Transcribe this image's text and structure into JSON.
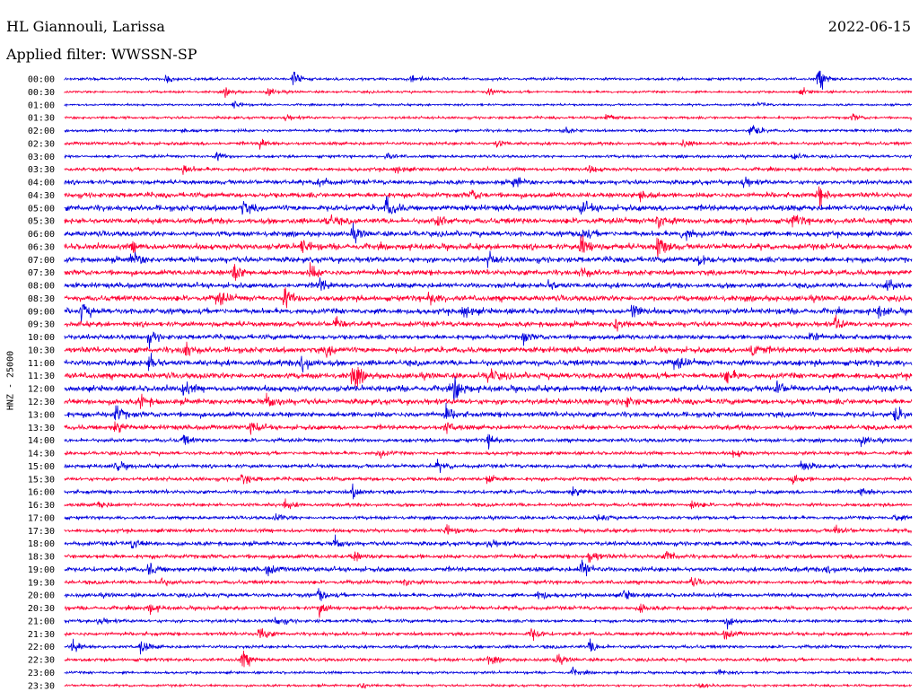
{
  "header": {
    "station": "HL Giannouli, Larissa",
    "date": "2022-06-15",
    "filter": "Applied filter: WWSSN-SP"
  },
  "chart_data": {
    "type": "line",
    "title": "HL Giannouli, Larissa",
    "date": "2022-06-15",
    "filter": "WWSSN-SP",
    "ylabel": "HNZ - 25000",
    "colors": [
      "#0000dd",
      "#ff0033"
    ],
    "rows": [
      {
        "time": "00:00",
        "activity": 0.3,
        "events": [
          [
            0.27,
            2.2
          ],
          [
            0.89,
            2.5
          ],
          [
            0.12,
            0.8
          ],
          [
            0.41,
            0.7
          ]
        ]
      },
      {
        "time": "00:30",
        "activity": 0.25,
        "events": [
          [
            0.19,
            0.8
          ],
          [
            0.24,
            0.9
          ],
          [
            0.5,
            0.7
          ],
          [
            0.87,
            0.6
          ]
        ]
      },
      {
        "time": "01:00",
        "activity": 0.2,
        "events": [
          [
            0.2,
            0.9
          ],
          [
            0.82,
            0.5
          ]
        ]
      },
      {
        "time": "01:30",
        "activity": 0.3,
        "events": [
          [
            0.26,
            0.8
          ],
          [
            0.64,
            1.0
          ],
          [
            0.93,
            0.7
          ]
        ]
      },
      {
        "time": "02:00",
        "activity": 0.35,
        "events": [
          [
            0.81,
            1.6
          ],
          [
            0.14,
            0.6
          ],
          [
            0.59,
            0.7
          ]
        ]
      },
      {
        "time": "02:30",
        "activity": 0.45,
        "events": [
          [
            0.23,
            1.2
          ],
          [
            0.51,
            0.7
          ],
          [
            0.73,
            0.7
          ]
        ]
      },
      {
        "time": "03:00",
        "activity": 0.35,
        "events": [
          [
            0.18,
            0.8
          ],
          [
            0.38,
            0.7
          ],
          [
            0.86,
            0.8
          ]
        ]
      },
      {
        "time": "03:30",
        "activity": 0.5,
        "events": [
          [
            0.14,
            1.0
          ],
          [
            0.39,
            0.9
          ],
          [
            0.62,
            0.8
          ]
        ]
      },
      {
        "time": "04:00",
        "activity": 0.7,
        "events": [
          [
            0.3,
            1.3
          ],
          [
            0.53,
            1.2
          ],
          [
            0.8,
            1.4
          ]
        ]
      },
      {
        "time": "04:30",
        "activity": 0.85,
        "events": [
          [
            0.68,
            1.6
          ],
          [
            0.89,
            1.8
          ],
          [
            0.48,
            1.1
          ]
        ]
      },
      {
        "time": "05:00",
        "activity": 1.0,
        "events": [
          [
            0.38,
            2.2
          ],
          [
            0.21,
            1.4
          ],
          [
            0.61,
            1.3
          ]
        ]
      },
      {
        "time": "05:30",
        "activity": 0.95,
        "events": [
          [
            0.31,
            1.6
          ],
          [
            0.44,
            1.2
          ],
          [
            0.7,
            1.8
          ],
          [
            0.86,
            1.3
          ]
        ]
      },
      {
        "time": "06:00",
        "activity": 0.9,
        "events": [
          [
            0.73,
            2.0
          ],
          [
            0.61,
            1.4
          ],
          [
            0.34,
            1.2
          ]
        ]
      },
      {
        "time": "06:30",
        "activity": 1.0,
        "events": [
          [
            0.61,
            3.0
          ],
          [
            0.7,
            2.8
          ],
          [
            0.28,
            1.6
          ],
          [
            0.08,
            1.4
          ]
        ]
      },
      {
        "time": "07:00",
        "activity": 0.95,
        "events": [
          [
            0.08,
            1.6
          ],
          [
            0.5,
            1.4
          ],
          [
            0.75,
            1.3
          ]
        ]
      },
      {
        "time": "07:30",
        "activity": 0.9,
        "events": [
          [
            0.2,
            1.8
          ],
          [
            0.29,
            1.4
          ],
          [
            0.61,
            1.2
          ]
        ]
      },
      {
        "time": "08:00",
        "activity": 0.85,
        "events": [
          [
            0.3,
            1.6
          ],
          [
            0.57,
            1.3
          ],
          [
            0.97,
            1.4
          ]
        ]
      },
      {
        "time": "08:30",
        "activity": 0.95,
        "events": [
          [
            0.26,
            2.0
          ],
          [
            0.18,
            1.8
          ],
          [
            0.43,
            1.3
          ]
        ]
      },
      {
        "time": "09:00",
        "activity": 0.95,
        "events": [
          [
            0.02,
            1.8
          ],
          [
            0.47,
            1.6
          ],
          [
            0.67,
            1.4
          ],
          [
            0.96,
            1.2
          ]
        ]
      },
      {
        "time": "09:30",
        "activity": 0.85,
        "events": [
          [
            0.32,
            1.2
          ],
          [
            0.65,
            1.5
          ],
          [
            0.91,
            1.4
          ]
        ]
      },
      {
        "time": "10:00",
        "activity": 0.8,
        "events": [
          [
            0.1,
            1.3
          ],
          [
            0.54,
            1.2
          ],
          [
            0.88,
            1.5
          ]
        ]
      },
      {
        "time": "10:30",
        "activity": 1.0,
        "events": [
          [
            0.14,
            2.0
          ],
          [
            0.81,
            2.2
          ],
          [
            0.31,
            1.4
          ]
        ]
      },
      {
        "time": "11:00",
        "activity": 1.0,
        "events": [
          [
            0.1,
            2.0
          ],
          [
            0.28,
            2.4
          ],
          [
            0.72,
            1.4
          ]
        ]
      },
      {
        "time": "11:30",
        "activity": 1.0,
        "events": [
          [
            0.34,
            3.0
          ],
          [
            0.5,
            1.8
          ],
          [
            0.78,
            1.6
          ]
        ]
      },
      {
        "time": "12:00",
        "activity": 1.0,
        "events": [
          [
            0.46,
            2.5
          ],
          [
            0.14,
            1.6
          ],
          [
            0.84,
            1.6
          ]
        ]
      },
      {
        "time": "12:30",
        "activity": 0.95,
        "events": [
          [
            0.24,
            1.8
          ],
          [
            0.09,
            1.4
          ],
          [
            0.66,
            1.3
          ]
        ]
      },
      {
        "time": "13:00",
        "activity": 0.9,
        "events": [
          [
            0.06,
            1.8
          ],
          [
            0.45,
            1.5
          ],
          [
            0.98,
            1.5
          ]
        ]
      },
      {
        "time": "13:30",
        "activity": 0.75,
        "events": [
          [
            0.06,
            1.6
          ],
          [
            0.22,
            1.3
          ],
          [
            0.45,
            1.2
          ]
        ]
      },
      {
        "time": "14:00",
        "activity": 0.55,
        "events": [
          [
            0.5,
            1.3
          ],
          [
            0.14,
            1.0
          ],
          [
            0.94,
            1.1
          ]
        ]
      },
      {
        "time": "14:30",
        "activity": 0.5,
        "events": [
          [
            0.37,
            1.0
          ],
          [
            0.79,
            0.9
          ]
        ]
      },
      {
        "time": "15:00",
        "activity": 0.55,
        "events": [
          [
            0.06,
            1.2
          ],
          [
            0.44,
            1.0
          ],
          [
            0.87,
            1.3
          ]
        ]
      },
      {
        "time": "15:30",
        "activity": 0.55,
        "events": [
          [
            0.21,
            1.4
          ],
          [
            0.5,
            1.2
          ],
          [
            0.86,
            1.0
          ]
        ]
      },
      {
        "time": "16:00",
        "activity": 0.55,
        "events": [
          [
            0.34,
            1.2
          ],
          [
            0.6,
            1.2
          ],
          [
            0.94,
            1.1
          ]
        ]
      },
      {
        "time": "16:30",
        "activity": 0.5,
        "events": [
          [
            0.04,
            1.0
          ],
          [
            0.26,
            0.9
          ],
          [
            0.74,
            1.0
          ]
        ]
      },
      {
        "time": "17:00",
        "activity": 0.45,
        "events": [
          [
            0.25,
            0.8
          ],
          [
            0.63,
            1.0
          ],
          [
            0.98,
            0.9
          ]
        ]
      },
      {
        "time": "17:30",
        "activity": 0.55,
        "events": [
          [
            0.45,
            1.2
          ],
          [
            0.91,
            1.0
          ]
        ]
      },
      {
        "time": "18:00",
        "activity": 0.65,
        "events": [
          [
            0.08,
            1.1
          ],
          [
            0.32,
            1.3
          ],
          [
            0.5,
            1.1
          ]
        ]
      },
      {
        "time": "18:30",
        "activity": 0.65,
        "events": [
          [
            0.62,
            1.6
          ],
          [
            0.34,
            1.1
          ],
          [
            0.71,
            1.2
          ]
        ]
      },
      {
        "time": "19:00",
        "activity": 0.75,
        "events": [
          [
            0.61,
            2.2
          ],
          [
            0.1,
            1.3
          ],
          [
            0.24,
            1.2
          ],
          [
            0.9,
            1.1
          ]
        ]
      },
      {
        "time": "19:30",
        "activity": 0.55,
        "events": [
          [
            0.11,
            1.2
          ],
          [
            0.4,
            1.0
          ],
          [
            0.74,
            0.9
          ]
        ]
      },
      {
        "time": "20:00",
        "activity": 0.6,
        "events": [
          [
            0.3,
            1.3
          ],
          [
            0.56,
            1.2
          ],
          [
            0.66,
            1.1
          ]
        ]
      },
      {
        "time": "20:30",
        "activity": 0.55,
        "events": [
          [
            0.3,
            1.4
          ],
          [
            0.1,
            1.1
          ],
          [
            0.68,
            1.0
          ]
        ]
      },
      {
        "time": "21:00",
        "activity": 0.45,
        "events": [
          [
            0.04,
            1.0
          ],
          [
            0.25,
            1.1
          ],
          [
            0.78,
            1.1
          ]
        ]
      },
      {
        "time": "21:30",
        "activity": 0.5,
        "events": [
          [
            0.23,
            1.6
          ],
          [
            0.55,
            1.4
          ],
          [
            0.78,
            1.1
          ]
        ]
      },
      {
        "time": "22:00",
        "activity": 0.45,
        "events": [
          [
            0.01,
            1.5
          ],
          [
            0.09,
            1.4
          ],
          [
            0.62,
            1.3
          ]
        ]
      },
      {
        "time": "22:30",
        "activity": 0.45,
        "events": [
          [
            0.21,
            2.0
          ],
          [
            0.5,
            1.0
          ],
          [
            0.58,
            0.9
          ]
        ]
      },
      {
        "time": "23:00",
        "activity": 0.3,
        "events": [
          [
            0.6,
            0.8
          ],
          [
            0.77,
            0.7
          ]
        ]
      },
      {
        "time": "23:30",
        "activity": 0.25,
        "events": [
          [
            0.35,
            0.8
          ],
          [
            0.75,
            0.6
          ]
        ]
      }
    ]
  }
}
